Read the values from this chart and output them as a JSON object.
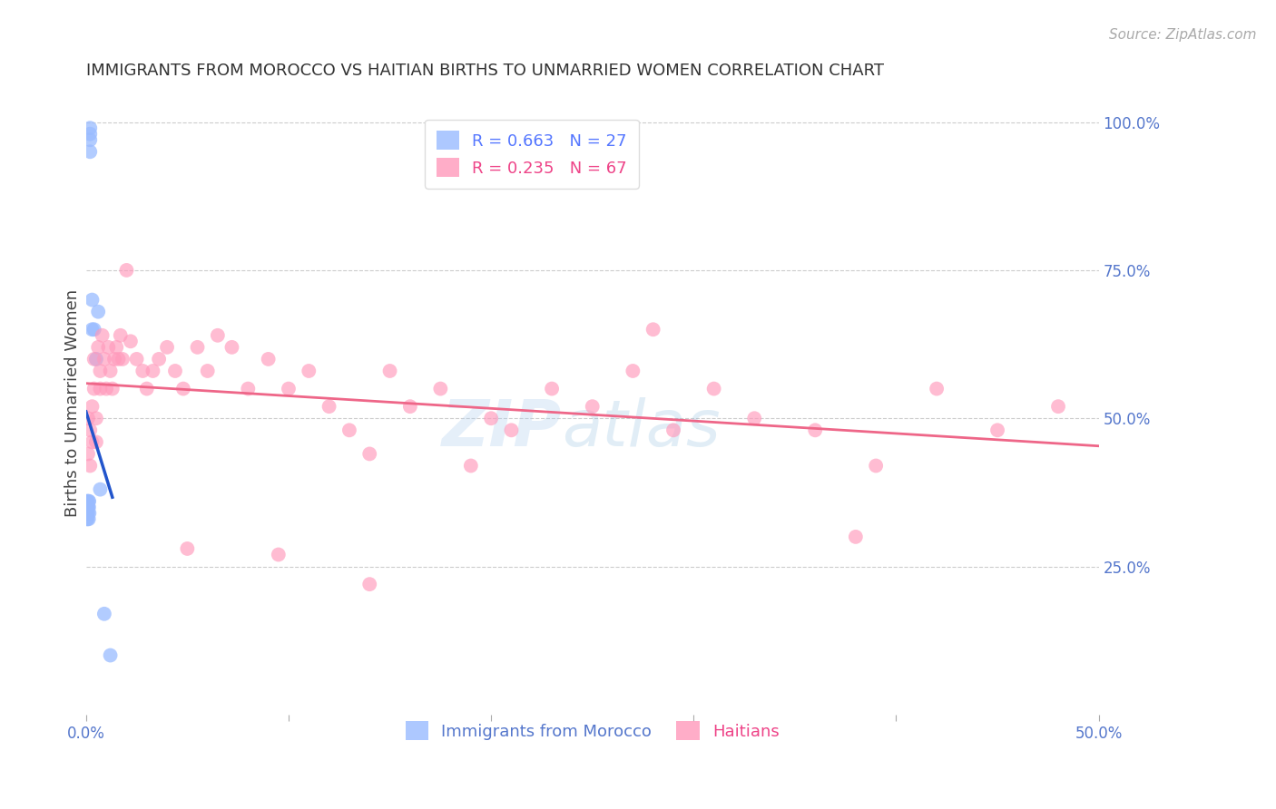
{
  "title": "IMMIGRANTS FROM MOROCCO VS HAITIAN BIRTHS TO UNMARRIED WOMEN CORRELATION CHART",
  "source": "Source: ZipAtlas.com",
  "ylabel": "Births to Unmarried Women",
  "right_yticks": [
    "100.0%",
    "75.0%",
    "50.0%",
    "25.0%"
  ],
  "right_ytick_vals": [
    1.0,
    0.75,
    0.5,
    0.25
  ],
  "legend1_label": "R = 0.663   N = 27",
  "legend2_label": "R = 0.235   N = 67",
  "blue_scatter_color": "#99bbff",
  "pink_scatter_color": "#ff99bb",
  "line_blue_color": "#2255cc",
  "line_pink_color": "#ee6688",
  "morocco_x": [
    0.0002,
    0.0003,
    0.0004,
    0.0005,
    0.0006,
    0.0007,
    0.0008,
    0.0009,
    0.001,
    0.001,
    0.0012,
    0.0013,
    0.0014,
    0.0015,
    0.0016,
    0.002,
    0.002,
    0.002,
    0.002,
    0.003,
    0.003,
    0.004,
    0.005,
    0.006,
    0.007,
    0.009,
    0.012
  ],
  "morocco_y": [
    0.35,
    0.33,
    0.35,
    0.36,
    0.34,
    0.36,
    0.33,
    0.35,
    0.35,
    0.34,
    0.36,
    0.33,
    0.35,
    0.36,
    0.34,
    0.99,
    0.98,
    0.97,
    0.95,
    0.7,
    0.65,
    0.65,
    0.6,
    0.68,
    0.38,
    0.17,
    0.1
  ],
  "haiti_x": [
    0.001,
    0.001,
    0.002,
    0.002,
    0.003,
    0.003,
    0.004,
    0.004,
    0.005,
    0.005,
    0.006,
    0.007,
    0.007,
    0.008,
    0.009,
    0.01,
    0.011,
    0.012,
    0.013,
    0.014,
    0.015,
    0.016,
    0.017,
    0.018,
    0.02,
    0.022,
    0.025,
    0.028,
    0.03,
    0.033,
    0.036,
    0.04,
    0.044,
    0.048,
    0.055,
    0.06,
    0.065,
    0.072,
    0.08,
    0.09,
    0.1,
    0.11,
    0.12,
    0.13,
    0.14,
    0.15,
    0.16,
    0.175,
    0.19,
    0.21,
    0.23,
    0.25,
    0.27,
    0.29,
    0.31,
    0.33,
    0.36,
    0.39,
    0.42,
    0.45,
    0.48,
    0.05,
    0.095,
    0.14,
    0.2,
    0.28,
    0.38
  ],
  "haiti_y": [
    0.5,
    0.44,
    0.48,
    0.42,
    0.52,
    0.46,
    0.55,
    0.6,
    0.5,
    0.46,
    0.62,
    0.58,
    0.55,
    0.64,
    0.6,
    0.55,
    0.62,
    0.58,
    0.55,
    0.6,
    0.62,
    0.6,
    0.64,
    0.6,
    0.75,
    0.63,
    0.6,
    0.58,
    0.55,
    0.58,
    0.6,
    0.62,
    0.58,
    0.55,
    0.62,
    0.58,
    0.64,
    0.62,
    0.55,
    0.6,
    0.55,
    0.58,
    0.52,
    0.48,
    0.44,
    0.58,
    0.52,
    0.55,
    0.42,
    0.48,
    0.55,
    0.52,
    0.58,
    0.48,
    0.55,
    0.5,
    0.48,
    0.42,
    0.55,
    0.48,
    0.52,
    0.28,
    0.27,
    0.22,
    0.5,
    0.65,
    0.3
  ],
  "xmin": 0.0,
  "xmax": 0.5,
  "ymin": 0.0,
  "ymax": 1.05,
  "background_color": "#ffffff",
  "grid_color": "#cccccc",
  "title_fontsize": 13,
  "axis_label_fontsize": 13,
  "tick_fontsize": 12,
  "source_fontsize": 11
}
